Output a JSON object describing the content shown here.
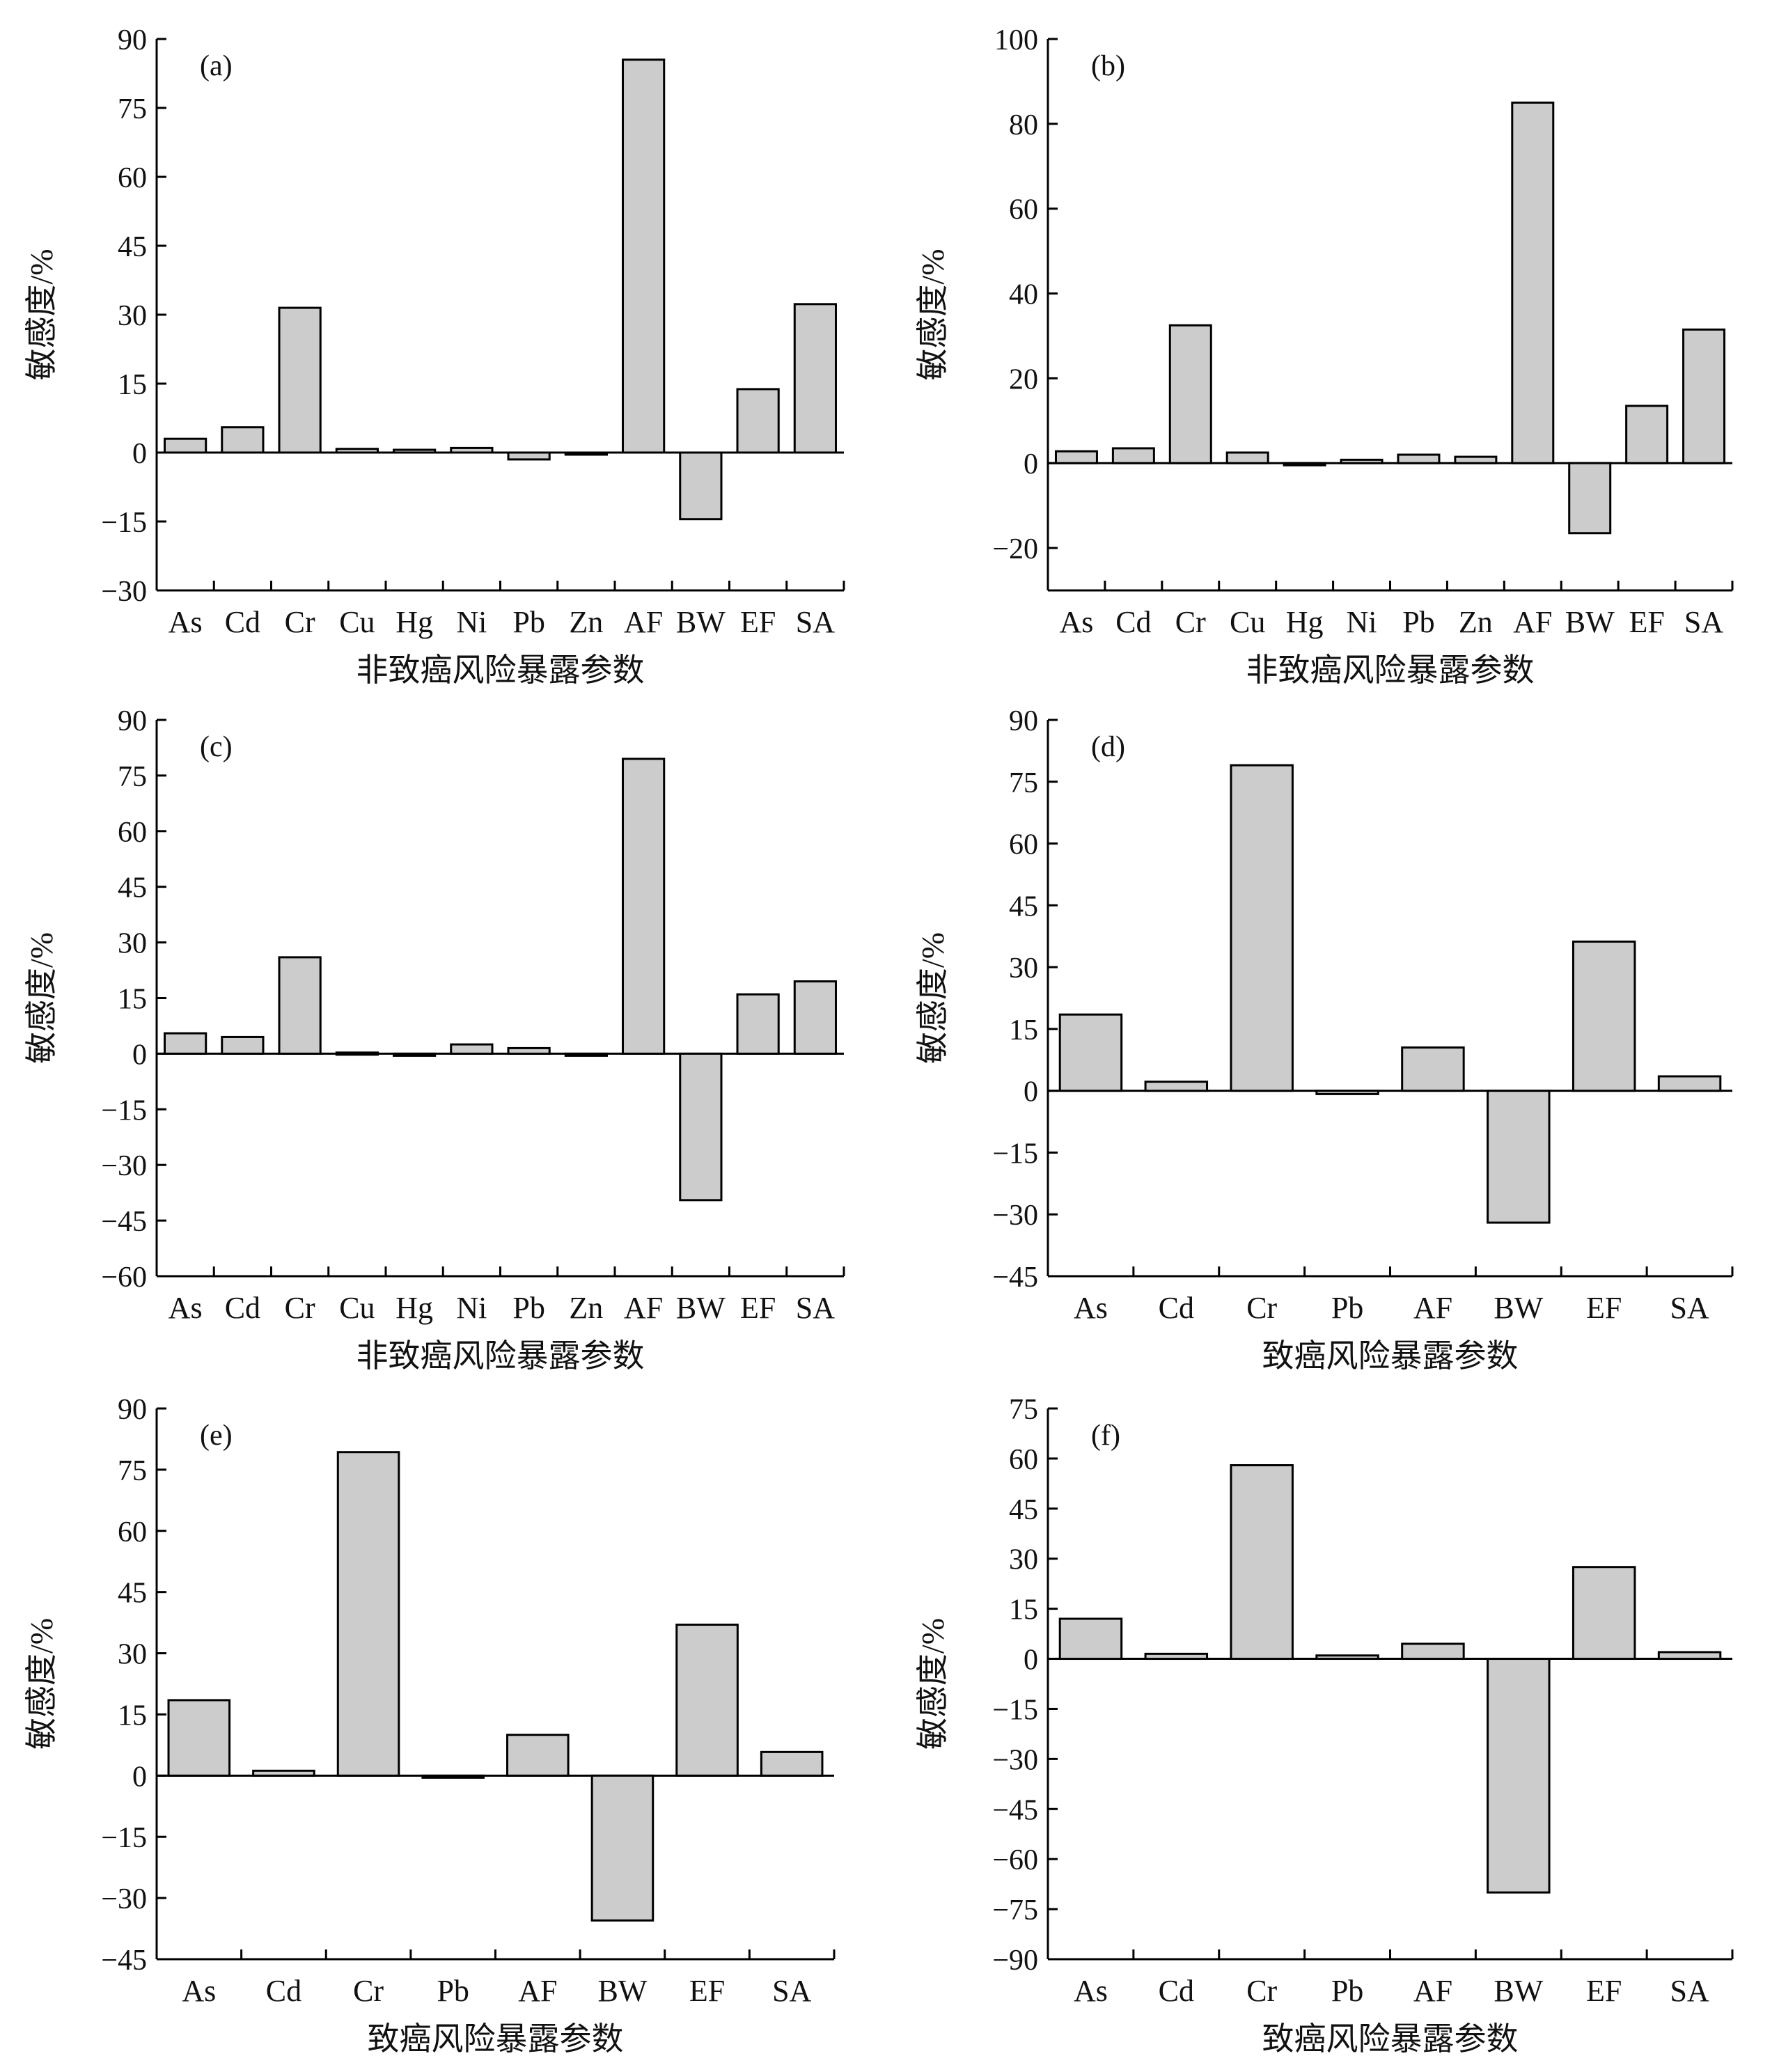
{
  "figure": {
    "bar_color": "#cccccc",
    "bar_stroke": "#000000",
    "axis_color": "#000000"
  },
  "chart_data": [
    {
      "type": "bar",
      "panel_label": "(a)",
      "ylabel": "敏感度/%",
      "xlabel": "非致癌风险暴露参数",
      "ylim": [
        -30,
        90
      ],
      "yticks": [
        -30,
        -15,
        0,
        15,
        30,
        45,
        60,
        75,
        90
      ],
      "categories": [
        "As",
        "Cd",
        "Cr",
        "Cu",
        "Hg",
        "Ni",
        "Pb",
        "Zn",
        "AF",
        "BW",
        "EF",
        "SA"
      ],
      "values": [
        3,
        5.5,
        31.5,
        0.8,
        0.6,
        1,
        -1.5,
        -0.3,
        85.5,
        -14.5,
        13.8,
        32.3
      ]
    },
    {
      "type": "bar",
      "panel_label": "(b)",
      "ylabel": "敏感度/%",
      "xlabel": "非致癌风险暴露参数",
      "ylim": [
        -30,
        100
      ],
      "yticks": [
        -20,
        0,
        20,
        40,
        60,
        80,
        100
      ],
      "categories": [
        "As",
        "Cd",
        "Cr",
        "Cu",
        "Hg",
        "Ni",
        "Pb",
        "Zn",
        "AF",
        "BW",
        "EF",
        "SA"
      ],
      "values": [
        2.8,
        3.5,
        32.5,
        2.5,
        -0.5,
        0.8,
        2,
        1.5,
        85,
        -16.5,
        13.5,
        31.5
      ]
    },
    {
      "type": "bar",
      "panel_label": "(c)",
      "ylabel": "敏感度/%",
      "xlabel": "非致癌风险暴露参数",
      "ylim": [
        -60,
        90
      ],
      "yticks": [
        -60,
        -45,
        -30,
        -15,
        0,
        15,
        30,
        45,
        60,
        75,
        90
      ],
      "categories": [
        "As",
        "Cd",
        "Cr",
        "Cu",
        "Hg",
        "Ni",
        "Pb",
        "Zn",
        "AF",
        "BW",
        "EF",
        "SA"
      ],
      "values": [
        5.5,
        4.5,
        26,
        0.3,
        -0.5,
        2.5,
        1.5,
        -0.5,
        79.5,
        -39.5,
        16,
        19.5
      ]
    },
    {
      "type": "bar",
      "panel_label": "(d)",
      "ylabel": "敏感度/%",
      "xlabel": "致癌风险暴露参数",
      "ylim": [
        -45,
        90
      ],
      "yticks": [
        -45,
        -30,
        -15,
        0,
        15,
        30,
        45,
        60,
        75,
        90
      ],
      "categories": [
        "As",
        "Cd",
        "Cr",
        "Pb",
        "AF",
        "BW",
        "EF",
        "SA"
      ],
      "values": [
        18.5,
        2.2,
        79,
        -0.8,
        10.5,
        -32,
        36.2,
        3.5
      ]
    },
    {
      "type": "bar",
      "panel_label": "(e)",
      "ylabel": "敏感度/%",
      "xlabel": "致癌风险暴露参数",
      "ylim": [
        -45,
        90
      ],
      "yticks": [
        -45,
        -30,
        -15,
        0,
        15,
        30,
        45,
        60,
        75,
        90
      ],
      "categories": [
        "As",
        "Cd",
        "Cr",
        "Pb",
        "AF",
        "BW",
        "EF",
        "SA"
      ],
      "values": [
        18.5,
        1.2,
        79.3,
        -0.5,
        10,
        -35.5,
        37,
        5.8
      ]
    },
    {
      "type": "bar",
      "panel_label": "(f)",
      "ylabel": "敏感度/%",
      "xlabel": "致癌风险暴露参数",
      "ylim": [
        -90,
        75
      ],
      "yticks": [
        -90,
        -75,
        -60,
        -45,
        -30,
        -15,
        0,
        15,
        30,
        45,
        60,
        75
      ],
      "categories": [
        "As",
        "Cd",
        "Cr",
        "Pb",
        "AF",
        "BW",
        "EF",
        "SA"
      ],
      "values": [
        12,
        1.5,
        58,
        1,
        4.5,
        -70,
        27.5,
        2
      ]
    }
  ]
}
